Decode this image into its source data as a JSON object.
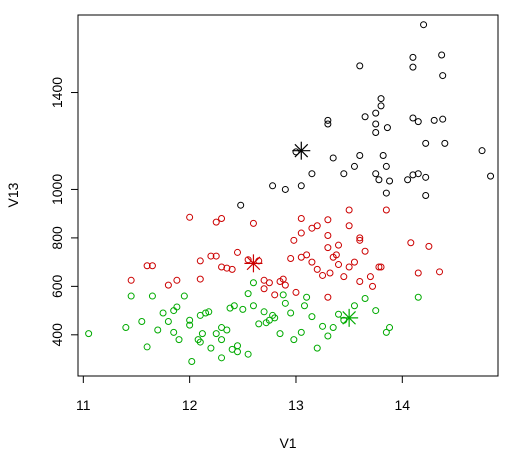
{
  "chart_data": {
    "type": "scatter",
    "title": "",
    "xlabel": "V1",
    "ylabel": "V13",
    "xlim": [
      10.95,
      14.9
    ],
    "ylim": [
      230,
      1720
    ],
    "x_ticks": [
      11,
      12,
      13,
      14
    ],
    "x_tick_labels": [
      "11",
      "12",
      "13",
      "14"
    ],
    "y_ticks": [
      400,
      600,
      800,
      1000,
      1400
    ],
    "y_tick_labels": [
      "400",
      "600",
      "800",
      "1000",
      "1400"
    ],
    "grid": false,
    "legend": "none",
    "series": [
      {
        "color": "#000000",
        "marker": "open-circle",
        "points": [
          [
            14.2,
            1680
          ],
          [
            13.6,
            1510
          ],
          [
            14.1,
            1505
          ],
          [
            14.38,
            1470
          ],
          [
            14.37,
            1555
          ],
          [
            14.1,
            1545
          ],
          [
            13.3,
            1285
          ],
          [
            13.3,
            1270
          ],
          [
            13.65,
            1300
          ],
          [
            13.75,
            1315
          ],
          [
            13.75,
            1270
          ],
          [
            13.75,
            1235
          ],
          [
            13.8,
            1375
          ],
          [
            13.8,
            1345
          ],
          [
            13.86,
            1255
          ],
          [
            14.1,
            1295
          ],
          [
            14.15,
            1280
          ],
          [
            14.3,
            1285
          ],
          [
            14.38,
            1290
          ],
          [
            14.4,
            1190
          ],
          [
            14.22,
            1190
          ],
          [
            13.0,
            1155
          ],
          [
            13.35,
            1130
          ],
          [
            13.6,
            1140
          ],
          [
            13.82,
            1140
          ],
          [
            13.85,
            1095
          ],
          [
            13.75,
            1065
          ],
          [
            13.78,
            1040
          ],
          [
            13.88,
            1035
          ],
          [
            13.55,
            1095
          ],
          [
            13.45,
            1065
          ],
          [
            13.15,
            1065
          ],
          [
            13.05,
            1015
          ],
          [
            12.9,
            1000
          ],
          [
            12.78,
            1015
          ],
          [
            14.05,
            1040
          ],
          [
            14.1,
            1060
          ],
          [
            14.15,
            1065
          ],
          [
            14.22,
            1050
          ],
          [
            14.22,
            975
          ],
          [
            14.75,
            1160
          ],
          [
            14.83,
            1055
          ],
          [
            12.48,
            935
          ],
          [
            13.85,
            985
          ]
        ]
      },
      {
        "color": "#cc0000",
        "marker": "open-circle",
        "points": [
          [
            12.0,
            885
          ],
          [
            12.25,
            865
          ],
          [
            12.3,
            880
          ],
          [
            12.6,
            860
          ],
          [
            13.05,
            880
          ],
          [
            13.3,
            875
          ],
          [
            13.5,
            915
          ],
          [
            13.85,
            915
          ],
          [
            11.45,
            625
          ],
          [
            11.6,
            685
          ],
          [
            11.65,
            685
          ],
          [
            11.8,
            605
          ],
          [
            11.88,
            625
          ],
          [
            12.1,
            630
          ],
          [
            12.1,
            705
          ],
          [
            12.2,
            725
          ],
          [
            12.25,
            725
          ],
          [
            12.3,
            680
          ],
          [
            12.35,
            675
          ],
          [
            12.4,
            670
          ],
          [
            12.45,
            740
          ],
          [
            12.55,
            710
          ],
          [
            12.65,
            705
          ],
          [
            12.7,
            625
          ],
          [
            12.7,
            590
          ],
          [
            12.75,
            615
          ],
          [
            12.8,
            565
          ],
          [
            12.85,
            620
          ],
          [
            12.88,
            630
          ],
          [
            12.9,
            605
          ],
          [
            12.95,
            715
          ],
          [
            12.98,
            790
          ],
          [
            13.05,
            820
          ],
          [
            13.05,
            720
          ],
          [
            13.1,
            730
          ],
          [
            13.15,
            700
          ],
          [
            13.15,
            840
          ],
          [
            13.2,
            850
          ],
          [
            13.2,
            670
          ],
          [
            13.25,
            645
          ],
          [
            13.3,
            760
          ],
          [
            13.3,
            810
          ],
          [
            13.32,
            655
          ],
          [
            13.35,
            720
          ],
          [
            13.38,
            730
          ],
          [
            13.4,
            690
          ],
          [
            13.4,
            770
          ],
          [
            13.45,
            640
          ],
          [
            13.5,
            680
          ],
          [
            13.5,
            850
          ],
          [
            13.55,
            700
          ],
          [
            13.6,
            800
          ],
          [
            13.6,
            790
          ],
          [
            13.6,
            620
          ],
          [
            13.65,
            745
          ],
          [
            13.7,
            640
          ],
          [
            13.72,
            600
          ],
          [
            13.78,
            680
          ],
          [
            13.8,
            680
          ],
          [
            14.08,
            780
          ],
          [
            14.15,
            655
          ],
          [
            14.25,
            765
          ],
          [
            14.35,
            660
          ],
          [
            13.3,
            555
          ],
          [
            13.0,
            575
          ]
        ]
      },
      {
        "color": "#00aa00",
        "marker": "open-circle",
        "points": [
          [
            11.05,
            405
          ],
          [
            11.4,
            430
          ],
          [
            11.45,
            560
          ],
          [
            11.55,
            455
          ],
          [
            11.6,
            350
          ],
          [
            11.65,
            560
          ],
          [
            11.7,
            420
          ],
          [
            11.75,
            490
          ],
          [
            11.8,
            455
          ],
          [
            11.85,
            500
          ],
          [
            11.85,
            410
          ],
          [
            11.88,
            515
          ],
          [
            11.9,
            380
          ],
          [
            11.95,
            560
          ],
          [
            12.0,
            440
          ],
          [
            12.0,
            460
          ],
          [
            12.02,
            290
          ],
          [
            12.1,
            480
          ],
          [
            12.1,
            370
          ],
          [
            12.12,
            405
          ],
          [
            12.15,
            490
          ],
          [
            12.18,
            495
          ],
          [
            12.2,
            345
          ],
          [
            12.25,
            405
          ],
          [
            12.3,
            430
          ],
          [
            12.3,
            380
          ],
          [
            12.3,
            305
          ],
          [
            12.35,
            420
          ],
          [
            12.38,
            510
          ],
          [
            12.4,
            340
          ],
          [
            12.42,
            520
          ],
          [
            12.45,
            330
          ],
          [
            12.45,
            355
          ],
          [
            12.5,
            505
          ],
          [
            12.55,
            320
          ],
          [
            12.55,
            570
          ],
          [
            12.6,
            520
          ],
          [
            12.65,
            445
          ],
          [
            12.7,
            495
          ],
          [
            12.72,
            450
          ],
          [
            12.75,
            460
          ],
          [
            12.78,
            480
          ],
          [
            12.8,
            470
          ],
          [
            12.85,
            405
          ],
          [
            12.88,
            565
          ],
          [
            12.9,
            530
          ],
          [
            12.95,
            490
          ],
          [
            12.98,
            380
          ],
          [
            13.05,
            410
          ],
          [
            13.08,
            520
          ],
          [
            13.1,
            555
          ],
          [
            13.15,
            475
          ],
          [
            13.2,
            345
          ],
          [
            13.25,
            435
          ],
          [
            13.3,
            395
          ],
          [
            13.35,
            430
          ],
          [
            13.4,
            485
          ],
          [
            13.45,
            460
          ],
          [
            13.55,
            520
          ],
          [
            13.65,
            550
          ],
          [
            13.75,
            500
          ],
          [
            13.85,
            410
          ],
          [
            13.88,
            430
          ],
          [
            14.15,
            555
          ],
          [
            12.6,
            615
          ],
          [
            12.08,
            380
          ]
        ]
      }
    ],
    "centroids": [
      {
        "x": 13.05,
        "y": 1160,
        "color": "#000000"
      },
      {
        "x": 12.6,
        "y": 695,
        "color": "#cc0000"
      },
      {
        "x": 13.5,
        "y": 470,
        "color": "#00aa00"
      }
    ]
  }
}
